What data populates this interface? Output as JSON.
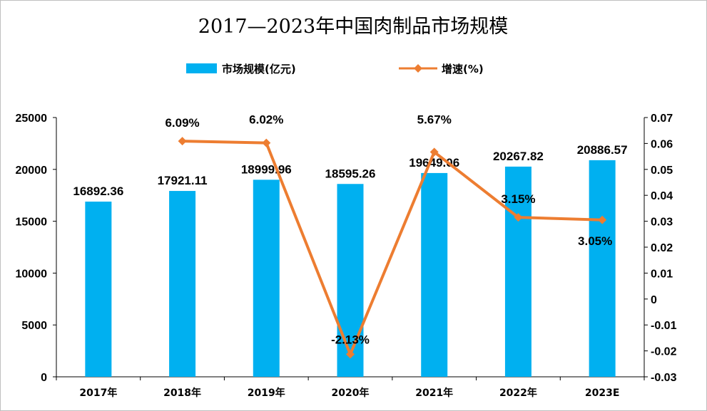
{
  "colors": {
    "bar": "#00B0F0",
    "line": "#ED7D31",
    "axis": "#000000",
    "gridline": "#d9d9d9",
    "background": "#ffffff"
  },
  "chart_data": {
    "type": "bar",
    "title": "2017—2023年中国肉制品市场规模",
    "categories": [
      "2017年",
      "2018年",
      "2019年",
      "2020年",
      "2021年",
      "2022年",
      "2023E"
    ],
    "series": [
      {
        "name": "市场规模(亿元)",
        "type": "bar",
        "axis": "left",
        "values": [
          16892.36,
          17921.11,
          18999.96,
          18595.26,
          19649.06,
          20267.82,
          20886.57
        ],
        "labels": [
          "16892.36",
          "17921.11",
          "18999.96",
          "18595.26",
          "19649.06",
          "20267.82",
          "20886.57"
        ]
      },
      {
        "name": "增速(%)",
        "type": "line",
        "axis": "right",
        "marker": "diamond",
        "values": [
          null,
          0.0609,
          0.0602,
          -0.0213,
          0.0567,
          0.0315,
          0.0305
        ],
        "labels": [
          "",
          "6.09%",
          "6.02%",
          "-2.13%",
          "5.67%",
          "3.15%",
          "3.05%"
        ]
      }
    ],
    "y_left": {
      "min": 0,
      "max": 25000,
      "ticks": [
        0,
        5000,
        10000,
        15000,
        20000,
        25000
      ],
      "tick_labels": [
        "0",
        "5000",
        "10000",
        "15000",
        "20000",
        "25000"
      ]
    },
    "y_right": {
      "min": -0.03,
      "max": 0.07,
      "ticks": [
        -0.03,
        -0.02,
        -0.01,
        0,
        0.01,
        0.02,
        0.03,
        0.04,
        0.05,
        0.06,
        0.07
      ],
      "tick_labels": [
        "-0.03",
        "-0.02",
        "-0.01",
        "0",
        "0.01",
        "0.02",
        "0.03",
        "0.04",
        "0.05",
        "0.06",
        "0.07"
      ]
    },
    "xlabel": "",
    "ylabel": "",
    "grid": false,
    "legend": "top-center"
  }
}
